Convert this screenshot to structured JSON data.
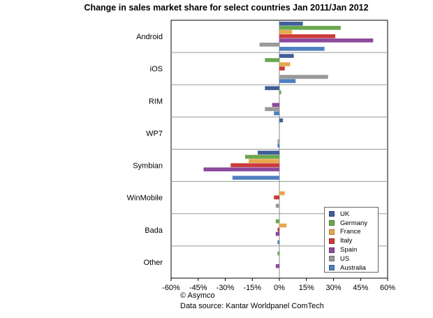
{
  "chart_data": {
    "type": "bar",
    "orientation": "horizontal",
    "title": "Change in sales market share for select countries Jan 2011/Jan 2012",
    "categories": [
      "Android",
      "iOS",
      "RIM",
      "WP7",
      "Symbian",
      "WinMobile",
      "Bada",
      "Other"
    ],
    "x_ticks": [
      "-60%",
      "-45%",
      "-30%",
      "-15%",
      "0%",
      "15%",
      "30%",
      "45%",
      "60%"
    ],
    "xlim": [
      -60,
      60
    ],
    "unit": "%",
    "grid": "horizontal separators between categories",
    "legend_position": "bottom-right",
    "series": [
      {
        "name": "UK",
        "color": "#3f5e99",
        "values": [
          13,
          8,
          -8,
          2,
          -12,
          0,
          0,
          0
        ]
      },
      {
        "name": "Germany",
        "color": "#6aa84f",
        "values": [
          34,
          -8,
          1,
          0,
          -19,
          0,
          -2,
          -1
        ]
      },
      {
        "name": "France",
        "color": "#e6a84a",
        "values": [
          7,
          6,
          0,
          0,
          -17,
          3,
          4,
          0
        ]
      },
      {
        "name": "Italy",
        "color": "#cc3a3a",
        "values": [
          31,
          3,
          0,
          0,
          -27,
          -3,
          -1,
          0
        ]
      },
      {
        "name": "Spain",
        "color": "#8b4a9c",
        "values": [
          52,
          0,
          -4,
          0,
          -42,
          0,
          -2,
          -2
        ]
      },
      {
        "name": "US",
        "color": "#999999",
        "values": [
          -11,
          27,
          -8,
          -1,
          0,
          -2,
          0,
          0
        ]
      },
      {
        "name": "Australia",
        "color": "#4f7fbf",
        "values": [
          25,
          9,
          -3,
          -1,
          -26,
          0,
          -1,
          0
        ]
      }
    ]
  },
  "credits": {
    "copyright": "© Asymco",
    "source": "Data source: Kantar Worldpanel ComTech"
  }
}
